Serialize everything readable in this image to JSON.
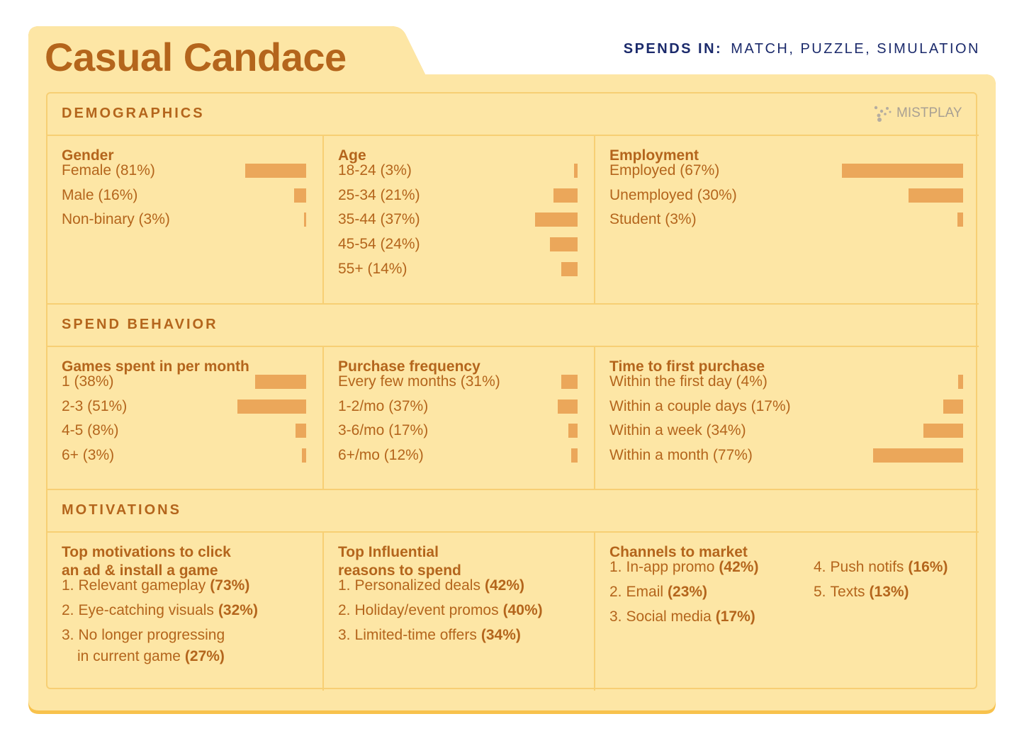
{
  "title": "Casual Candace",
  "spends_in": {
    "label": "SPENDS IN:",
    "value": "MATCH, PUZZLE, SIMULATION"
  },
  "logo": "MISTPLAY",
  "sections": [
    {
      "title": "DEMOGRAPHICS",
      "groups": [
        {
          "title": [
            "Gender"
          ],
          "items": [
            {
              "text": "Female (81%)",
              "value": 81
            },
            {
              "text": "Male (16%)",
              "value": 16
            },
            {
              "text": "Non-binary (3%)",
              "value": 3
            }
          ]
        },
        {
          "title": [
            "Age"
          ],
          "items": [
            {
              "text": "18-24 (3%)",
              "value": 3
            },
            {
              "text": "25-34 (21%)",
              "value": 21
            },
            {
              "text": "35-44 (37%)",
              "value": 37
            },
            {
              "text": "45-54 (24%)",
              "value": 24
            },
            {
              "text": "55+ (14%)",
              "value": 14
            }
          ]
        },
        {
          "title": [
            "Employment"
          ],
          "items": [
            {
              "text": "Employed (67%)",
              "value": 67
            },
            {
              "text": "Unemployed (30%)",
              "value": 30
            },
            {
              "text": "Student (3%)",
              "value": 3
            }
          ]
        }
      ]
    },
    {
      "title": "SPEND BEHAVIOR",
      "groups": [
        {
          "title": [
            "Games spent in per month"
          ],
          "items": [
            {
              "text": "1 (38%)",
              "value": 38
            },
            {
              "text": "2-3 (51%)",
              "value": 51
            },
            {
              "text": "4-5 (8%)",
              "value": 8
            },
            {
              "text": "6+ (3%)",
              "value": 3
            }
          ]
        },
        {
          "title": [
            "Purchase frequency"
          ],
          "items": [
            {
              "text": "Every few months (31%)",
              "value": 31
            },
            {
              "text": "1-2/mo (37%)",
              "value": 37
            },
            {
              "text": "3-6/mo (17%)",
              "value": 17
            },
            {
              "text": "6+/mo (12%)",
              "value": 12
            }
          ]
        },
        {
          "title": [
            "Time to first purchase"
          ],
          "items": [
            {
              "text": "Within the first day (4%)",
              "value": 4
            },
            {
              "text": "Within a couple days (17%)",
              "value": 17
            },
            {
              "text": "Within a week (34%)",
              "value": 34
            },
            {
              "text": "Within a month (77%)",
              "value": 77
            }
          ]
        }
      ]
    },
    {
      "title": "MOTIVATIONS",
      "groups": [
        {
          "title": [
            "Top motivations to click",
            "an ad & install a game"
          ],
          "items": [
            {
              "rank": "1.",
              "text": [
                "Relevant gameplay"
              ],
              "share": "(73%)"
            },
            {
              "rank": "2.",
              "text": [
                "Eye-catching visuals"
              ],
              "share": "(32%)"
            },
            {
              "rank": "3.",
              "text": [
                "No longer progressing",
                "in current game"
              ],
              "share": "(27%)"
            }
          ]
        },
        {
          "title": [
            "Top Influential",
            "reasons to spend"
          ],
          "items": [
            {
              "rank": "1.",
              "text": [
                "Personalized deals"
              ],
              "share": "(42%)"
            },
            {
              "rank": "2.",
              "text": [
                "Holiday/event promos"
              ],
              "share": "(40%)"
            },
            {
              "rank": "3.",
              "text": [
                "Limited-time offers"
              ],
              "share": "(34%)"
            }
          ]
        },
        {
          "title": [
            "Channels to market"
          ],
          "items": [
            {
              "rank": "1.",
              "text": [
                "In-app promo"
              ],
              "share": "(42%)"
            },
            {
              "rank": "2.",
              "text": [
                "Email"
              ],
              "share": "(23%)"
            },
            {
              "rank": "3.",
              "text": [
                "Social media"
              ],
              "share": "(17%)"
            },
            {
              "rank": "4.",
              "text": [
                "Push notifs"
              ],
              "share": "(16%)"
            },
            {
              "rank": "5.",
              "text": [
                "Texts"
              ],
              "share": "(13%)"
            }
          ]
        }
      ]
    }
  ]
}
